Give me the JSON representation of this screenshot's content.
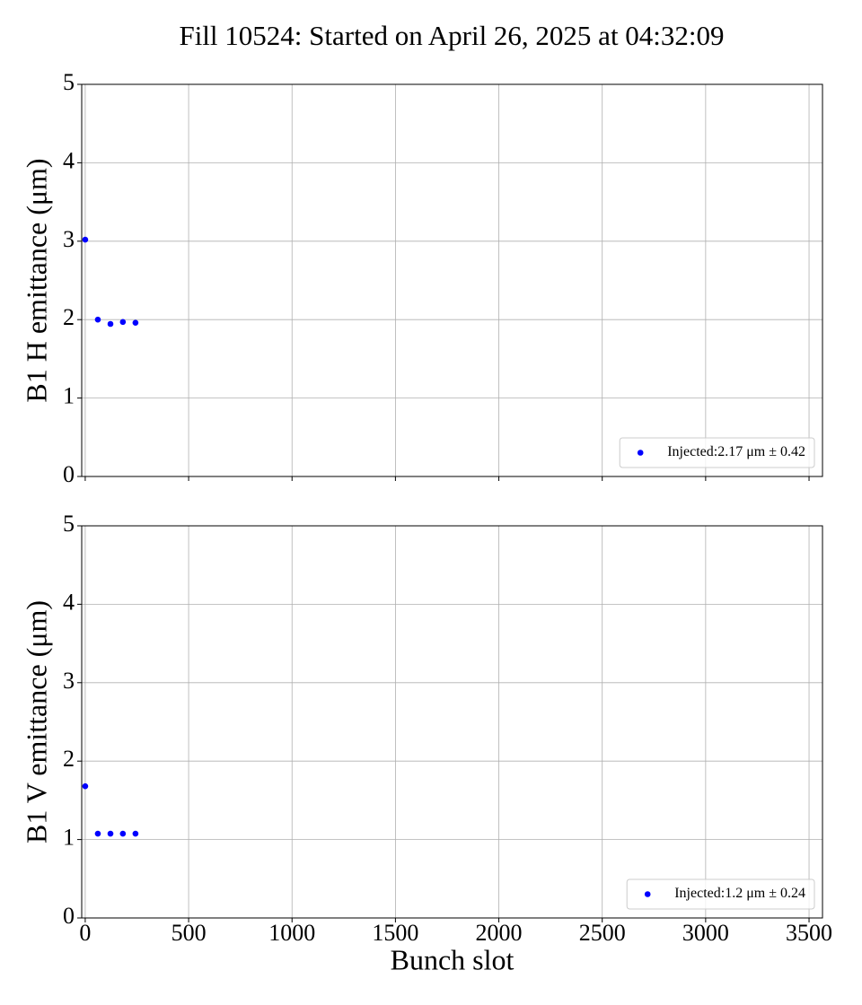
{
  "title": "Fill 10524: Started on April 26, 2025 at 04:32:09",
  "chart_data": [
    {
      "type": "scatter",
      "ylabel": "B1 H emittance (μm)",
      "series": [
        {
          "name": "Injected:2.17 μm ± 0.42",
          "color": "#0000ff",
          "x": [
            0,
            61,
            122,
            182,
            243
          ],
          "values": [
            3.02,
            2.0,
            1.945,
            1.97,
            1.96
          ]
        }
      ],
      "xlim": [
        -17,
        3565
      ],
      "ylim": [
        0,
        5
      ],
      "xticks": [
        0,
        500,
        1000,
        1500,
        2000,
        2500,
        3000,
        3500
      ],
      "yticks": [
        0,
        1,
        2,
        3,
        4,
        5
      ],
      "grid": true,
      "legend": "lower right"
    },
    {
      "type": "scatter",
      "ylabel": "B1 V emittance (μm)",
      "xlabel": "Bunch slot",
      "series": [
        {
          "name": "Injected:1.2 μm ± 0.24",
          "color": "#0000ff",
          "x": [
            0,
            61,
            122,
            182,
            243
          ],
          "values": [
            1.68,
            1.075,
            1.075,
            1.075,
            1.075
          ]
        }
      ],
      "xlim": [
        -17,
        3565
      ],
      "ylim": [
        0,
        5
      ],
      "xticks": [
        0,
        500,
        1000,
        1500,
        2000,
        2500,
        3000,
        3500
      ],
      "yticks": [
        0,
        1,
        2,
        3,
        4,
        5
      ],
      "grid": true,
      "legend": "lower right"
    }
  ]
}
